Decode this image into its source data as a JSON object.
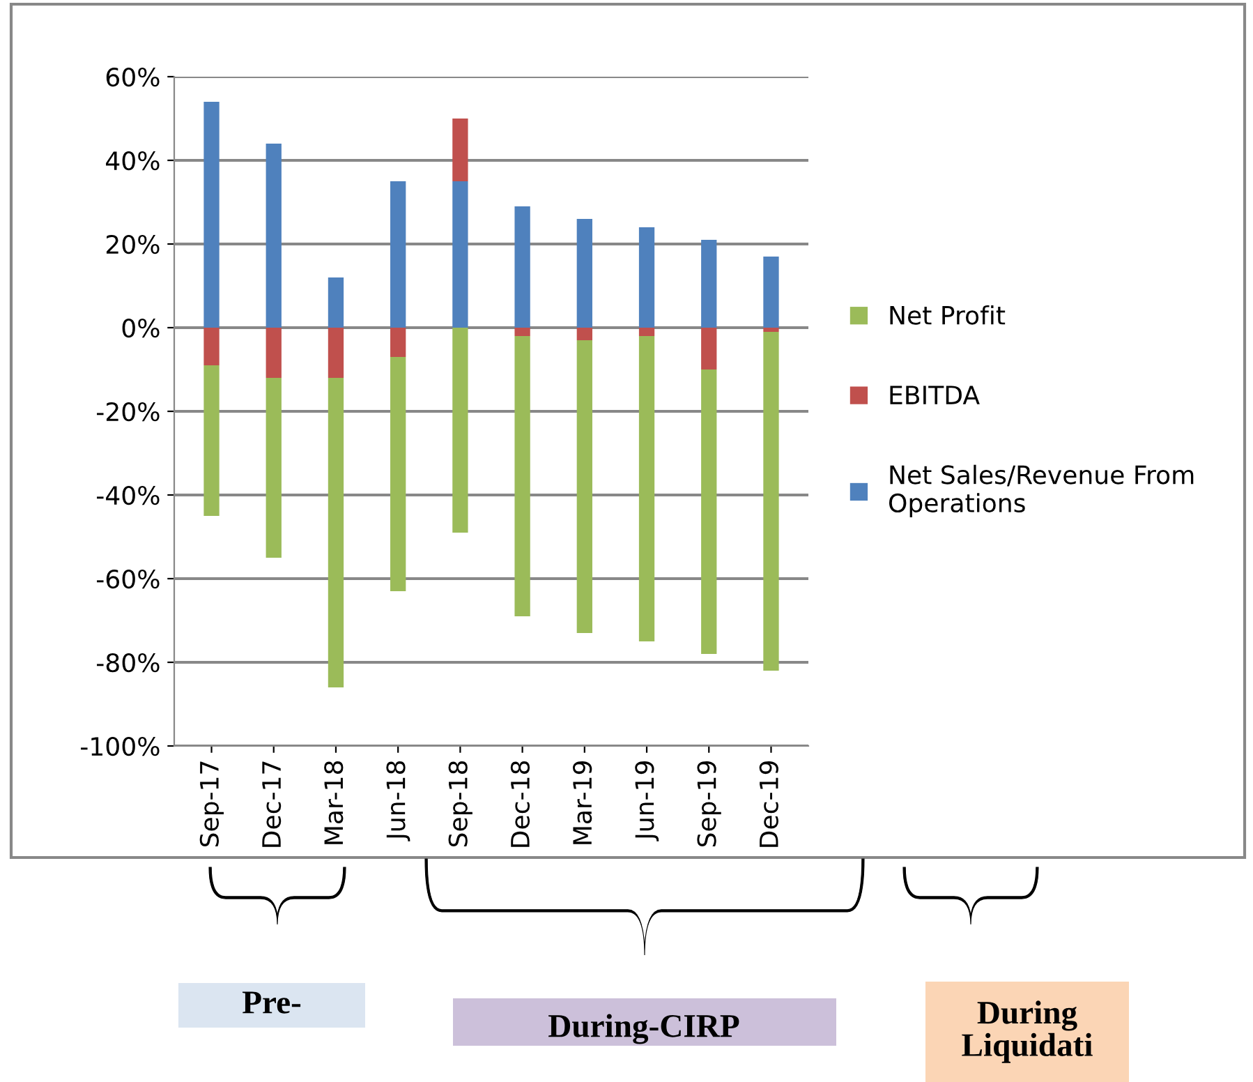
{
  "chart_data": {
    "type": "bar",
    "stacked": true,
    "categories": [
      "Sep-17",
      "Dec-17",
      "Mar-18",
      "Jun-18",
      "Sep-18",
      "Dec-18",
      "Mar-19",
      "Jun-19",
      "Sep-19",
      "Dec-19"
    ],
    "series": [
      {
        "name": "Net Sales/Revenue From Operations",
        "color": "#4f81bd",
        "values": [
          54,
          44,
          12,
          35,
          35,
          29,
          26,
          24,
          21,
          17
        ]
      },
      {
        "name": "EBITDA",
        "color": "#c0504d",
        "values": [
          -9,
          -12,
          -12,
          -7,
          15,
          -2,
          -3,
          -2,
          -10,
          -1
        ]
      },
      {
        "name": "Net Profit",
        "color": "#9bbb59",
        "values": [
          -36,
          -43,
          -74,
          -56,
          -49,
          -67,
          -70,
          -73,
          -68,
          -81
        ]
      }
    ],
    "ylim": [
      -100,
      60
    ],
    "yticks": [
      {
        "value": -100,
        "label": "-100%"
      },
      {
        "value": -80,
        "label": "-80%"
      },
      {
        "value": -60,
        "label": "-60%"
      },
      {
        "value": -40,
        "label": "-40%"
      },
      {
        "value": -20,
        "label": "-20%"
      },
      {
        "value": 0,
        "label": "0%"
      },
      {
        "value": 20,
        "label": "20%"
      },
      {
        "value": 40,
        "label": "40%"
      },
      {
        "value": 60,
        "label": "60%"
      }
    ],
    "grid": "y",
    "legend": "right",
    "annotations": [
      "Pre-",
      "During-CIRP",
      "During Liquidati"
    ]
  }
}
